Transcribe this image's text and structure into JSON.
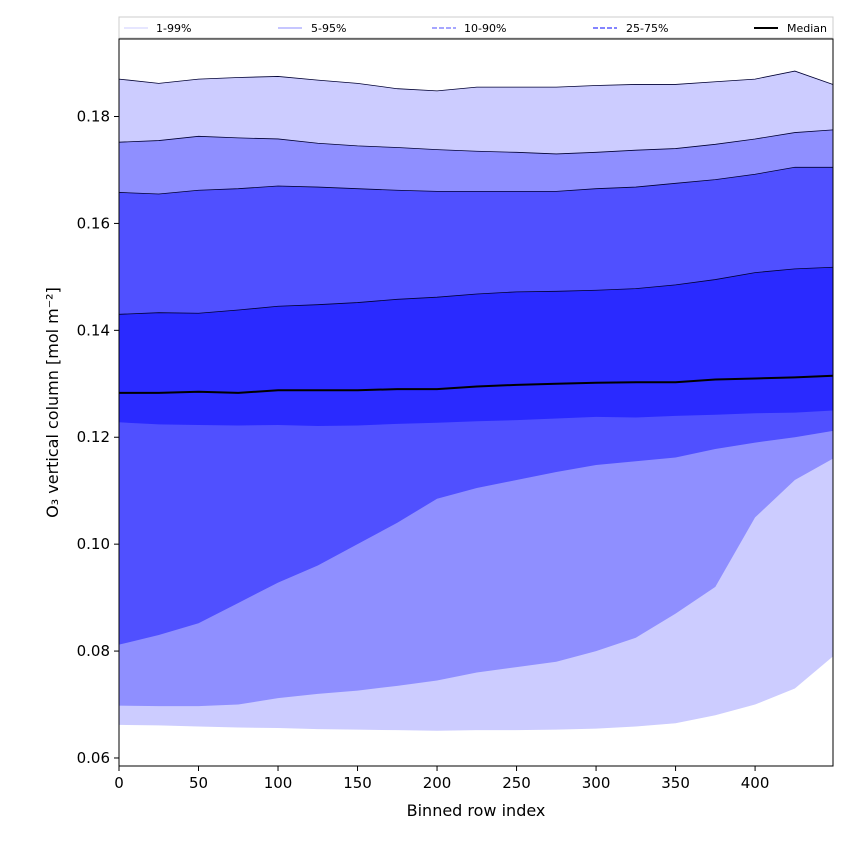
{
  "chart_data": {
    "type": "area",
    "title": "",
    "xlabel": "Binned row index",
    "ylabel": "O₃ vertical column [mol m⁻²]",
    "xlim": [
      0,
      449
    ],
    "ylim": [
      0.0585,
      0.1945
    ],
    "x_ticks": [
      0,
      50,
      100,
      150,
      200,
      250,
      300,
      350,
      400
    ],
    "y_ticks": [
      0.06,
      0.08,
      0.1,
      0.12,
      0.14,
      0.16,
      0.18
    ],
    "y_tick_labels": [
      "0.06",
      "0.08",
      "0.10",
      "0.12",
      "0.14",
      "0.16",
      "0.18"
    ],
    "grid": false,
    "legend": {
      "placement": "top",
      "entries": [
        {
          "label": "1-99%",
          "line_color": "#d6d6ff",
          "dashed": false
        },
        {
          "label": "5-95%",
          "line_color": "#a5a5ff",
          "dashed": false
        },
        {
          "label": "10-90%",
          "line_color": "#7070ff",
          "dashed": true
        },
        {
          "label": "25-75%",
          "line_color": "#3a3aff",
          "dashed": true
        },
        {
          "label": "Median",
          "line_color": "#000000",
          "dashed": false
        }
      ]
    },
    "x": [
      0,
      25,
      50,
      75,
      100,
      125,
      150,
      175,
      200,
      225,
      250,
      275,
      300,
      325,
      350,
      375,
      400,
      425,
      449
    ],
    "bands": [
      {
        "name": "1-99%",
        "color": "#ccccff",
        "lower": [
          0.0662,
          0.0661,
          0.0659,
          0.0657,
          0.0656,
          0.0654,
          0.0653,
          0.0652,
          0.0651,
          0.0652,
          0.0652,
          0.0653,
          0.0655,
          0.0659,
          0.0665,
          0.068,
          0.07,
          0.073,
          0.079
        ],
        "upper": [
          0.187,
          0.1862,
          0.187,
          0.1873,
          0.1875,
          0.1868,
          0.1862,
          0.1852,
          0.1848,
          0.1855,
          0.1855,
          0.1855,
          0.1858,
          0.186,
          0.186,
          0.1865,
          0.187,
          0.1885,
          0.186
        ]
      },
      {
        "name": "5-95%",
        "color": "#8f8fff",
        "lower": [
          0.0698,
          0.0697,
          0.0697,
          0.07,
          0.0712,
          0.072,
          0.0726,
          0.0735,
          0.0745,
          0.076,
          0.077,
          0.078,
          0.08,
          0.0825,
          0.087,
          0.092,
          0.105,
          0.112,
          0.116
        ],
        "upper": [
          0.1752,
          0.1755,
          0.1763,
          0.176,
          0.1758,
          0.175,
          0.1745,
          0.1742,
          0.1738,
          0.1735,
          0.1733,
          0.173,
          0.1733,
          0.1737,
          0.174,
          0.1748,
          0.1758,
          0.177,
          0.1775
        ]
      },
      {
        "name": "10-90%",
        "color": "#5050ff",
        "lower": [
          0.0812,
          0.083,
          0.0852,
          0.089,
          0.0928,
          0.096,
          0.1,
          0.104,
          0.1085,
          0.1105,
          0.112,
          0.1135,
          0.1148,
          0.1155,
          0.1162,
          0.1178,
          0.119,
          0.12,
          0.1212
        ],
        "upper": [
          0.1658,
          0.1655,
          0.1662,
          0.1665,
          0.167,
          0.1668,
          0.1665,
          0.1662,
          0.166,
          0.166,
          0.166,
          0.166,
          0.1665,
          0.1668,
          0.1675,
          0.1682,
          0.1692,
          0.1705,
          0.1705
        ]
      },
      {
        "name": "25-75%",
        "color": "#2a2aff",
        "lower": [
          0.1228,
          0.1224,
          0.1223,
          0.1222,
          0.1223,
          0.1221,
          0.1222,
          0.1225,
          0.1227,
          0.123,
          0.1232,
          0.1235,
          0.1238,
          0.1237,
          0.124,
          0.1242,
          0.1245,
          0.1246,
          0.125
        ],
        "upper": [
          0.143,
          0.1433,
          0.1432,
          0.1438,
          0.1445,
          0.1448,
          0.1452,
          0.1458,
          0.1462,
          0.1468,
          0.1472,
          0.1473,
          0.1475,
          0.1478,
          0.1485,
          0.1495,
          0.1508,
          0.1515,
          0.1518
        ]
      }
    ],
    "median": [
      0.1283,
      0.1283,
      0.1285,
      0.1283,
      0.1288,
      0.1288,
      0.1288,
      0.129,
      0.129,
      0.1295,
      0.1298,
      0.13,
      0.1302,
      0.1303,
      0.1303,
      0.1308,
      0.131,
      0.1312,
      0.1315
    ]
  }
}
